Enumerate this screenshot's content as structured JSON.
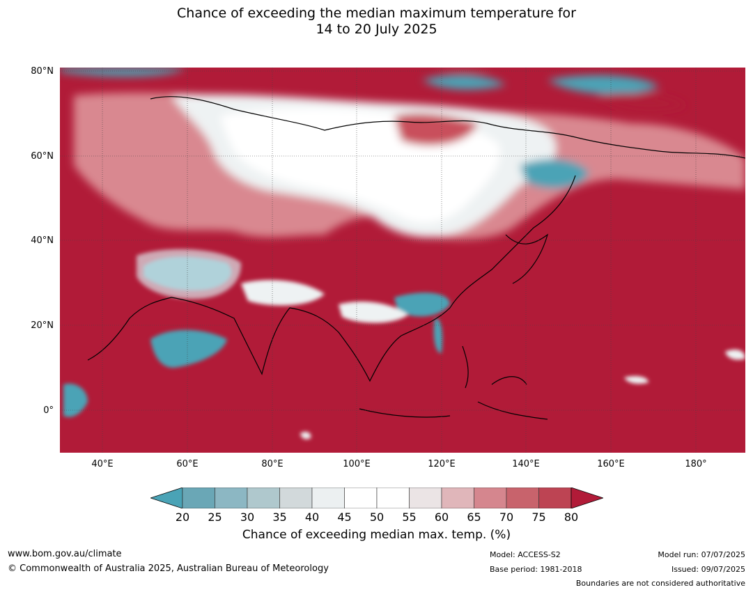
{
  "title": {
    "line1": "Chance of exceeding the median maximum temperature for",
    "line2": "14 to 20 July 2025"
  },
  "map": {
    "lat_labels": [
      "80°N",
      "60°N",
      "40°N",
      "20°N",
      "0°"
    ],
    "lon_labels": [
      "40°E",
      "60°E",
      "80°E",
      "100°E",
      "120°E",
      "140°E",
      "160°E",
      "180°"
    ],
    "extent": {
      "lon": [
        30,
        192
      ],
      "lat": [
        -10,
        80
      ]
    },
    "colors": {
      "hot": "#b11b38",
      "warm": "#c94f5c",
      "mild_warm": "#d98890",
      "pale_warm": "#e8bcc0",
      "neutral": "#f4f4f4",
      "cool": "#4ba3b6",
      "pale_cool": "#a9c8cf"
    }
  },
  "colorbar": {
    "ticks": [
      "20",
      "25",
      "30",
      "35",
      "40",
      "45",
      "50",
      "55",
      "60",
      "65",
      "70",
      "75",
      "80"
    ],
    "colors": [
      "#4aa3b6",
      "#6aa7b6",
      "#8cb7c3",
      "#afc8cd",
      "#d2d9db",
      "#ecf0f1",
      "#ffffff",
      "#ffffff",
      "#ebe4e5",
      "#e0b6ba",
      "#d5868e",
      "#c8636c",
      "#bd4453",
      "#b11b38"
    ],
    "label": "Chance of exceeding median max. temp. (%)"
  },
  "footer": {
    "website": "www.bom.gov.au/climate",
    "copyright": "© Commonwealth of Australia 2025, Australian Bureau of Meteorology",
    "model": "Model: ACCESS-S2",
    "base_period": "Base period: 1981-2018",
    "model_run": "Model run: 07/07/2025",
    "issued": "Issued: 09/07/2025",
    "disclaimer": "Boundaries are not considered authoritative"
  }
}
